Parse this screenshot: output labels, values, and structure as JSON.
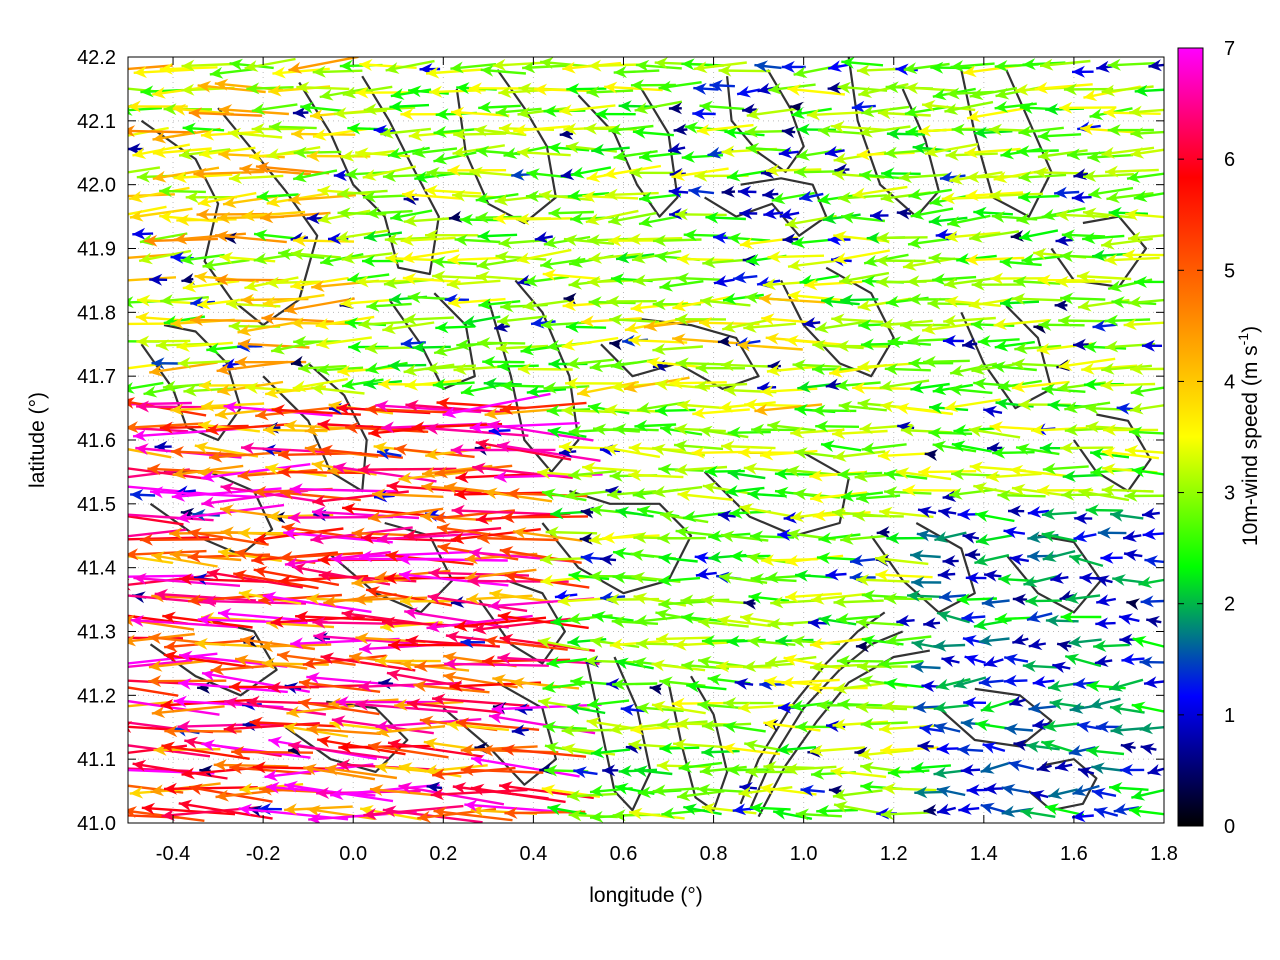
{
  "chart_data": {
    "type": "vector-field",
    "xlabel": "longitude (°)",
    "ylabel": "latitude (°)",
    "xlim": [
      -0.5,
      1.8
    ],
    "ylim": [
      41.0,
      42.2
    ],
    "grid": true,
    "x_ticks": [
      "-0.4",
      "-0.2",
      "0.0",
      "0.2",
      "0.4",
      "0.6",
      "0.8",
      "1.0",
      "1.2",
      "1.4",
      "1.6",
      "1.8"
    ],
    "x_tick_values": [
      -0.4,
      -0.2,
      0.0,
      0.2,
      0.4,
      0.6,
      0.8,
      1.0,
      1.2,
      1.4,
      1.6,
      1.8
    ],
    "y_ticks": [
      "41.0",
      "41.1",
      "41.2",
      "41.3",
      "41.4",
      "41.5",
      "41.6",
      "41.7",
      "41.8",
      "41.9",
      "42.0",
      "42.1",
      "42.2"
    ],
    "y_tick_values": [
      41.0,
      41.1,
      41.2,
      41.3,
      41.4,
      41.5,
      41.6,
      41.7,
      41.8,
      41.9,
      42.0,
      42.1,
      42.2
    ],
    "colorbar": {
      "label": "10m-wind speed (m s",
      "label_sup": "-1",
      "label_end": ")",
      "range": [
        0,
        7
      ],
      "ticks": [
        "0",
        "1",
        "2",
        "3",
        "4",
        "5",
        "6",
        "7"
      ],
      "tick_values": [
        0,
        1,
        2,
        3,
        4,
        5,
        6,
        7
      ],
      "palette": [
        "#000000",
        "#0000ff",
        "#00ff00",
        "#ffff00",
        "#ff8000",
        "#ff0000",
        "#ff00ff"
      ]
    },
    "contour_color": "#333333",
    "contours": [
      [
        [
          -0.47,
          42.1
        ],
        [
          -0.35,
          42.04
        ],
        [
          -0.3,
          41.97
        ],
        [
          -0.33,
          41.88
        ],
        [
          -0.27,
          41.82
        ],
        [
          -0.2,
          41.78
        ],
        [
          -0.12,
          41.82
        ],
        [
          -0.08,
          41.92
        ],
        [
          -0.15,
          41.99
        ],
        [
          -0.23,
          42.06
        ],
        [
          -0.3,
          42.12
        ]
      ],
      [
        [
          -0.12,
          42.16
        ],
        [
          -0.05,
          42.08
        ],
        [
          0.0,
          42.0
        ],
        [
          0.07,
          41.95
        ],
        [
          0.1,
          41.87
        ],
        [
          0.17,
          41.86
        ],
        [
          0.19,
          41.95
        ],
        [
          0.13,
          42.03
        ],
        [
          0.08,
          42.1
        ],
        [
          0.02,
          42.17
        ]
      ],
      [
        [
          0.23,
          42.15
        ],
        [
          0.25,
          42.05
        ],
        [
          0.3,
          41.97
        ],
        [
          0.38,
          41.94
        ],
        [
          0.45,
          41.98
        ],
        [
          0.43,
          42.06
        ],
        [
          0.38,
          42.12
        ],
        [
          0.32,
          42.18
        ]
      ],
      [
        [
          0.5,
          42.14
        ],
        [
          0.58,
          42.08
        ],
        [
          0.63,
          42.0
        ],
        [
          0.68,
          41.95
        ],
        [
          0.72,
          41.98
        ],
        [
          0.7,
          42.08
        ],
        [
          0.64,
          42.15
        ]
      ],
      [
        [
          0.83,
          42.17
        ],
        [
          0.84,
          42.1
        ],
        [
          0.9,
          42.05
        ],
        [
          0.96,
          42.02
        ],
        [
          1.0,
          42.06
        ],
        [
          0.97,
          42.12
        ],
        [
          0.92,
          42.18
        ]
      ],
      [
        [
          0.78,
          41.98
        ],
        [
          0.85,
          41.95
        ],
        [
          0.93,
          41.97
        ],
        [
          0.99,
          41.92
        ],
        [
          1.05,
          41.95
        ],
        [
          1.02,
          42.0
        ],
        [
          0.95,
          42.01
        ],
        [
          0.86,
          42.0
        ]
      ],
      [
        [
          1.1,
          42.2
        ],
        [
          1.12,
          42.1
        ],
        [
          1.17,
          42.0
        ],
        [
          1.25,
          41.95
        ],
        [
          1.3,
          41.99
        ],
        [
          1.27,
          42.07
        ],
        [
          1.22,
          42.15
        ]
      ],
      [
        [
          1.35,
          42.18
        ],
        [
          1.38,
          42.08
        ],
        [
          1.42,
          41.98
        ],
        [
          1.5,
          41.95
        ],
        [
          1.55,
          42.02
        ],
        [
          1.5,
          42.1
        ],
        [
          1.45,
          42.18
        ]
      ],
      [
        [
          1.55,
          41.9
        ],
        [
          1.6,
          41.85
        ],
        [
          1.7,
          41.84
        ],
        [
          1.76,
          41.9
        ],
        [
          1.7,
          41.95
        ],
        [
          1.62,
          41.94
        ]
      ],
      [
        [
          -0.47,
          41.75
        ],
        [
          -0.4,
          41.68
        ],
        [
          -0.37,
          41.62
        ],
        [
          -0.3,
          41.6
        ],
        [
          -0.25,
          41.65
        ],
        [
          -0.28,
          41.72
        ],
        [
          -0.35,
          41.77
        ],
        [
          -0.42,
          41.78
        ]
      ],
      [
        [
          -0.2,
          41.7
        ],
        [
          -0.1,
          41.63
        ],
        [
          -0.05,
          41.55
        ],
        [
          0.02,
          41.52
        ],
        [
          0.03,
          41.6
        ],
        [
          -0.02,
          41.67
        ],
        [
          -0.1,
          41.72
        ]
      ],
      [
        [
          0.08,
          41.82
        ],
        [
          0.15,
          41.75
        ],
        [
          0.2,
          41.68
        ],
        [
          0.27,
          41.7
        ],
        [
          0.25,
          41.78
        ],
        [
          0.18,
          41.83
        ]
      ],
      [
        [
          0.3,
          41.82
        ],
        [
          0.35,
          41.7
        ],
        [
          0.38,
          41.6
        ],
        [
          0.44,
          41.55
        ],
        [
          0.5,
          41.6
        ],
        [
          0.48,
          41.7
        ],
        [
          0.42,
          41.8
        ],
        [
          0.36,
          41.85
        ]
      ],
      [
        [
          0.55,
          41.75
        ],
        [
          0.62,
          41.7
        ],
        [
          0.72,
          41.72
        ],
        [
          0.82,
          41.68
        ],
        [
          0.9,
          41.7
        ],
        [
          0.85,
          41.76
        ],
        [
          0.75,
          41.78
        ],
        [
          0.63,
          41.79
        ]
      ],
      [
        [
          0.95,
          41.85
        ],
        [
          1.0,
          41.78
        ],
        [
          1.08,
          41.72
        ],
        [
          1.15,
          41.7
        ],
        [
          1.2,
          41.76
        ],
        [
          1.15,
          41.83
        ],
        [
          1.05,
          41.87
        ]
      ],
      [
        [
          1.35,
          41.8
        ],
        [
          1.4,
          41.72
        ],
        [
          1.47,
          41.65
        ],
        [
          1.55,
          41.68
        ],
        [
          1.52,
          41.76
        ],
        [
          1.45,
          41.81
        ]
      ],
      [
        [
          1.6,
          41.6
        ],
        [
          1.65,
          41.55
        ],
        [
          1.72,
          41.52
        ],
        [
          1.77,
          41.57
        ],
        [
          1.72,
          41.63
        ],
        [
          1.65,
          41.64
        ]
      ],
      [
        [
          0.42,
          41.47
        ],
        [
          0.5,
          41.4
        ],
        [
          0.6,
          41.36
        ],
        [
          0.7,
          41.38
        ],
        [
          0.75,
          41.45
        ],
        [
          0.68,
          41.5
        ],
        [
          0.57,
          41.5
        ],
        [
          0.48,
          41.52
        ]
      ],
      [
        [
          0.78,
          41.55
        ],
        [
          0.88,
          41.48
        ],
        [
          0.98,
          41.45
        ],
        [
          1.08,
          41.47
        ],
        [
          1.1,
          41.54
        ],
        [
          1.0,
          41.58
        ],
        [
          0.88,
          41.58
        ]
      ],
      [
        [
          1.15,
          41.45
        ],
        [
          1.22,
          41.38
        ],
        [
          1.3,
          41.33
        ],
        [
          1.38,
          41.36
        ],
        [
          1.35,
          41.43
        ],
        [
          1.25,
          41.47
        ]
      ],
      [
        [
          1.45,
          41.42
        ],
        [
          1.52,
          41.36
        ],
        [
          1.6,
          41.33
        ],
        [
          1.66,
          41.38
        ],
        [
          1.6,
          41.44
        ],
        [
          1.52,
          41.45
        ]
      ],
      [
        [
          -0.45,
          41.5
        ],
        [
          -0.35,
          41.45
        ],
        [
          -0.25,
          41.42
        ],
        [
          -0.18,
          41.46
        ],
        [
          -0.22,
          41.52
        ],
        [
          -0.32,
          41.55
        ],
        [
          -0.42,
          41.55
        ]
      ],
      [
        [
          -0.05,
          41.42
        ],
        [
          0.05,
          41.36
        ],
        [
          0.15,
          41.33
        ],
        [
          0.22,
          41.38
        ],
        [
          0.17,
          41.45
        ],
        [
          0.07,
          41.47
        ]
      ],
      [
        [
          0.28,
          41.35
        ],
        [
          0.35,
          41.28
        ],
        [
          0.42,
          41.25
        ],
        [
          0.47,
          41.3
        ],
        [
          0.42,
          41.36
        ],
        [
          0.34,
          41.38
        ]
      ],
      [
        [
          -0.45,
          41.28
        ],
        [
          -0.35,
          41.23
        ],
        [
          -0.25,
          41.2
        ],
        [
          -0.17,
          41.24
        ],
        [
          -0.22,
          41.3
        ],
        [
          -0.33,
          41.32
        ]
      ],
      [
        [
          -0.15,
          41.15
        ],
        [
          -0.05,
          41.1
        ],
        [
          0.05,
          41.08
        ],
        [
          0.12,
          41.13
        ],
        [
          0.05,
          41.18
        ],
        [
          -0.06,
          41.19
        ]
      ],
      [
        [
          0.2,
          41.18
        ],
        [
          0.3,
          41.12
        ],
        [
          0.38,
          41.06
        ],
        [
          0.45,
          41.1
        ],
        [
          0.42,
          41.18
        ],
        [
          0.32,
          41.22
        ]
      ],
      [
        [
          0.52,
          41.25
        ],
        [
          0.55,
          41.15
        ],
        [
          0.58,
          41.05
        ],
        [
          0.62,
          41.02
        ],
        [
          0.66,
          41.08
        ],
        [
          0.63,
          41.18
        ],
        [
          0.58,
          41.26
        ]
      ],
      [
        [
          0.7,
          41.22
        ],
        [
          0.73,
          41.12
        ],
        [
          0.76,
          41.04
        ],
        [
          0.8,
          41.02
        ],
        [
          0.83,
          41.08
        ],
        [
          0.8,
          41.17
        ],
        [
          0.75,
          41.23
        ]
      ],
      [
        [
          0.86,
          41.03
        ],
        [
          0.9,
          41.1
        ],
        [
          0.97,
          41.18
        ],
        [
          1.05,
          41.25
        ],
        [
          1.12,
          41.3
        ],
        [
          1.18,
          41.33
        ]
      ],
      [
        [
          0.88,
          41.02
        ],
        [
          0.93,
          41.1
        ],
        [
          1.0,
          41.18
        ],
        [
          1.08,
          41.24
        ],
        [
          1.15,
          41.28
        ],
        [
          1.22,
          41.3
        ]
      ],
      [
        [
          0.9,
          41.01
        ],
        [
          0.96,
          41.09
        ],
        [
          1.03,
          41.16
        ],
        [
          1.1,
          41.22
        ],
        [
          1.2,
          41.26
        ],
        [
          1.28,
          41.27
        ]
      ],
      [
        [
          1.3,
          41.18
        ],
        [
          1.38,
          41.13
        ],
        [
          1.48,
          41.12
        ],
        [
          1.55,
          41.16
        ],
        [
          1.48,
          41.2
        ],
        [
          1.38,
          41.21
        ]
      ],
      [
        [
          1.5,
          41.05
        ],
        [
          1.55,
          41.02
        ],
        [
          1.62,
          41.03
        ],
        [
          1.65,
          41.07
        ],
        [
          1.6,
          41.1
        ],
        [
          1.53,
          41.09
        ]
      ]
    ]
  }
}
